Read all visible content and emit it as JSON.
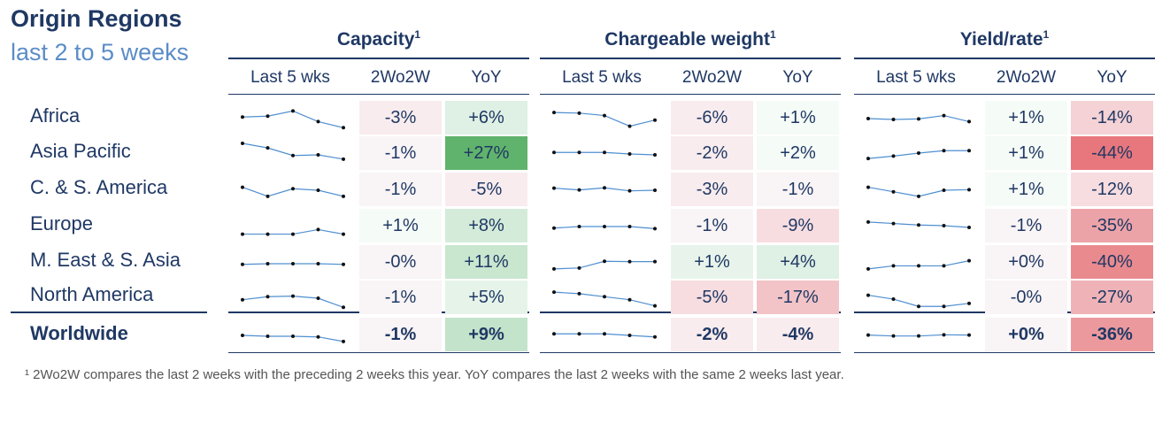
{
  "header": {
    "title": "Origin Regions",
    "subtitle": "last 2 to 5 weeks"
  },
  "footnote": "¹ 2Wo2W compares the last 2 weeks with the preceding 2 weeks this year. YoY compares the last 2 weeks with the same 2 weeks last year.",
  "chart_data": {
    "type": "table",
    "groups": [
      {
        "title": "Capacity",
        "superscript": "1",
        "columns": [
          "Last 5 wks",
          "2Wo2W",
          "YoY"
        ],
        "rows": [
          {
            "spark": [
              4,
              4.3,
              6,
              2.5,
              0.5
            ],
            "wo2w": "-3%",
            "yoy": "+6%"
          },
          {
            "spark": [
              7,
              5.5,
              3,
              3.2,
              1.8
            ],
            "wo2w": "-1%",
            "yoy": "+27%"
          },
          {
            "spark": [
              4.5,
              1.5,
              4,
              3.5,
              1.5
            ],
            "wo2w": "-1%",
            "yoy": "-5%"
          },
          {
            "spark": [
              1,
              1,
              1,
              2.5,
              1
            ],
            "wo2w": "+1%",
            "yoy": "+8%"
          },
          {
            "spark": [
              3,
              3.2,
              3.2,
              3.2,
              3
            ],
            "wo2w": "-0%",
            "yoy": "+11%"
          },
          {
            "spark": [
              3,
              4,
              4.2,
              3.5,
              0.5
            ],
            "wo2w": "-1%",
            "yoy": "+5%"
          },
          {
            "spark": [
              3.5,
              3.2,
              3.2,
              3,
              1.5
            ],
            "wo2w": "-1%",
            "yoy": "+9%"
          }
        ]
      },
      {
        "title": "Chargeable weight",
        "superscript": "1",
        "columns": [
          "Last 5 wks",
          "2Wo2W",
          "YoY"
        ],
        "rows": [
          {
            "spark": [
              5.5,
              5.3,
              4.5,
              1,
              3
            ],
            "wo2w": "-6%",
            "yoy": "+1%"
          },
          {
            "spark": [
              4,
              4,
              4,
              3.5,
              3.2
            ],
            "wo2w": "-2%",
            "yoy": "+2%"
          },
          {
            "spark": [
              4.2,
              3.6,
              4.3,
              3.3,
              3.5
            ],
            "wo2w": "-3%",
            "yoy": "-1%"
          },
          {
            "spark": [
              3,
              3.5,
              3.5,
              3.5,
              2.8
            ],
            "wo2w": "-1%",
            "yoy": "-9%"
          },
          {
            "spark": [
              1.5,
              1.8,
              4,
              3.9,
              3.9
            ],
            "wo2w": "+1%",
            "yoy": "+4%"
          },
          {
            "spark": [
              5.5,
              5,
              4,
              3,
              1
            ],
            "wo2w": "-5%",
            "yoy": "-17%"
          },
          {
            "spark": [
              4,
              4,
              4,
              3.5,
              3
            ],
            "wo2w": "-2%",
            "yoy": "-4%"
          }
        ]
      },
      {
        "title": "Yield/rate",
        "superscript": "1",
        "columns": [
          "Last 5 wks",
          "2Wo2W",
          "YoY"
        ],
        "rows": [
          {
            "spark": [
              3.5,
              3.2,
              3.4,
              4.5,
              2.5
            ],
            "wo2w": "+1%",
            "yoy": "-14%"
          },
          {
            "spark": [
              2,
              2.8,
              3.8,
              4.6,
              4.6
            ],
            "wo2w": "+1%",
            "yoy": "-44%"
          },
          {
            "spark": [
              4.5,
              3,
              1.5,
              3.5,
              3.7
            ],
            "wo2w": "+1%",
            "yoy": "-12%"
          },
          {
            "spark": [
              5,
              4.5,
              4,
              3.8,
              3.2
            ],
            "wo2w": "-1%",
            "yoy": "-35%"
          },
          {
            "spark": [
              1.5,
              2.5,
              2.5,
              2.5,
              4.2
            ],
            "wo2w": "+0%",
            "yoy": "-40%"
          },
          {
            "spark": [
              4.5,
              3.2,
              0.8,
              0.8,
              1.8
            ],
            "wo2w": "-0%",
            "yoy": "-27%"
          },
          {
            "spark": [
              3.6,
              3.3,
              3.3,
              3.7,
              3.6
            ],
            "wo2w": "+0%",
            "yoy": "-36%"
          }
        ]
      }
    ],
    "regions": [
      "Africa",
      "Asia Pacific",
      "C. & S. America",
      "Europe",
      "M. East & S. Asia",
      "North America",
      "Worldwide"
    ],
    "cell_colors": [
      [
        "#f9ecee",
        "#dff0e4",
        "#f9ecee",
        "#f5fbf6",
        "#f5fbf6",
        "#f4d2d5"
      ],
      [
        "#f9f4f5",
        "#60b36c",
        "#f9ecee",
        "#f5fbf6",
        "#f5fbf6",
        "#e8777d"
      ],
      [
        "#f9f4f5",
        "#f9ecee",
        "#f9ecee",
        "#f9f4f5",
        "#f5fbf6",
        "#f7dde0"
      ],
      [
        "#f5fbf6",
        "#d4ebd9",
        "#f9f4f5",
        "#f7dde0",
        "#f9f4f5",
        "#eca3a7"
      ],
      [
        "#f9f4f5",
        "#c9e6cf",
        "#e8f4eb",
        "#dff0e4",
        "#f9f4f5",
        "#e98a8f"
      ],
      [
        "#f9f4f5",
        "#e6f3e9",
        "#f7dde0",
        "#f2c4c7",
        "#f9f4f5",
        "#efb3b7"
      ],
      [
        "#f9f4f5",
        "#c3e3ca",
        "#f9ecee",
        "#f9ecee",
        "#f9f4f5",
        "#ec999e"
      ]
    ]
  }
}
